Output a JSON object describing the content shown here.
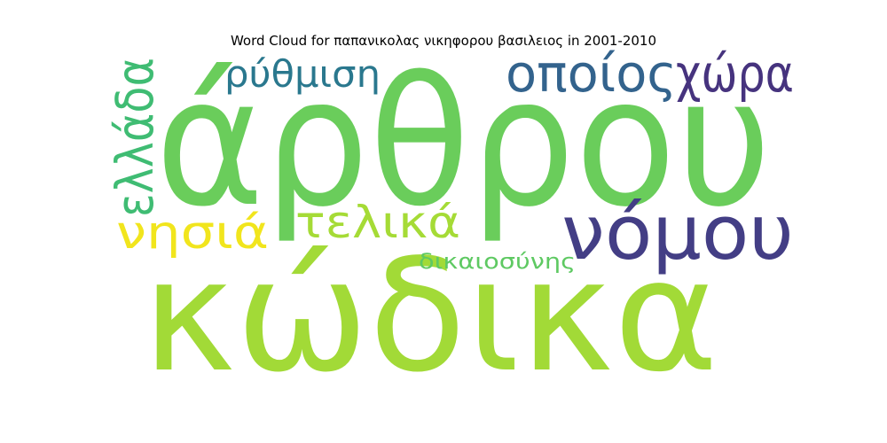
{
  "chart_data": {
    "type": "wordcloud",
    "title": "Word Cloud for παπανικολας νικηφορου βασιλειος in 2001-2010",
    "words": [
      {
        "text": "άρθρου",
        "weight": 1.0,
        "color": "#6acd5b"
      },
      {
        "text": "κώδικα",
        "weight": 0.95,
        "color": "#a2da37"
      },
      {
        "text": "νόμου",
        "weight": 0.45,
        "color": "#433e85"
      },
      {
        "text": "οποίος",
        "weight": 0.3,
        "color": "#33638d"
      },
      {
        "text": "χώρα",
        "weight": 0.3,
        "color": "#46337e"
      },
      {
        "text": "ελλάδα",
        "weight": 0.3,
        "color": "#3fbc73"
      },
      {
        "text": "ρύθμιση",
        "weight": 0.25,
        "color": "#2a788e"
      },
      {
        "text": "νησιά",
        "weight": 0.25,
        "color": "#f1e51d"
      },
      {
        "text": "τελικά",
        "weight": 0.25,
        "color": "#a5db36"
      },
      {
        "text": "δικαιοσύνης",
        "weight": 0.15,
        "color": "#5ec962"
      }
    ]
  }
}
